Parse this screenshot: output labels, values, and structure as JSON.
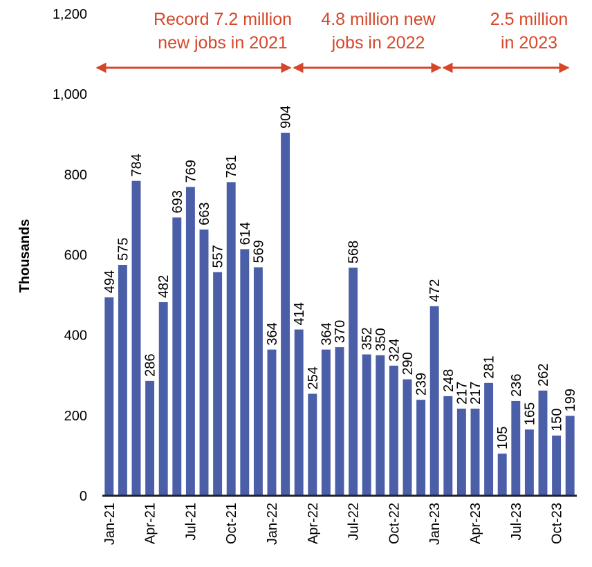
{
  "chart_data": {
    "type": "bar",
    "y_label": "Thousands",
    "categories": [
      "Jan-21",
      null,
      null,
      "Apr-21",
      null,
      null,
      "Jul-21",
      null,
      null,
      "Oct-21",
      null,
      null,
      "Jan-22",
      null,
      null,
      "Apr-22",
      null,
      null,
      "Jul-22",
      null,
      null,
      "Oct-22",
      null,
      null,
      "Jan-23",
      null,
      null,
      "Apr-23",
      null,
      null,
      "Jul-23",
      null,
      null,
      "Oct-23",
      null
    ],
    "values": [
      494,
      575,
      784,
      286,
      482,
      693,
      769,
      663,
      557,
      781,
      614,
      569,
      364,
      904,
      414,
      254,
      364,
      370,
      568,
      352,
      350,
      324,
      290,
      239,
      472,
      248,
      217,
      217,
      281,
      105,
      236,
      165,
      262,
      150,
      199
    ],
    "color": "#4a5fa8",
    "ylim": [
      0,
      1200
    ],
    "yticks": [
      0,
      200,
      400,
      600,
      800,
      {
        "value": 1000,
        "label": "1,000"
      },
      {
        "value": 1200,
        "label": "1,200"
      }
    ],
    "annotations": [
      {
        "lines": [
          "Record 7.2 million",
          "new jobs in 2021"
        ]
      },
      {
        "lines": [
          "4.8 million new",
          "jobs in 2022"
        ]
      },
      {
        "lines": [
          "2.5 million",
          "in 2023"
        ]
      }
    ],
    "annotation_color": "#d5472b"
  }
}
